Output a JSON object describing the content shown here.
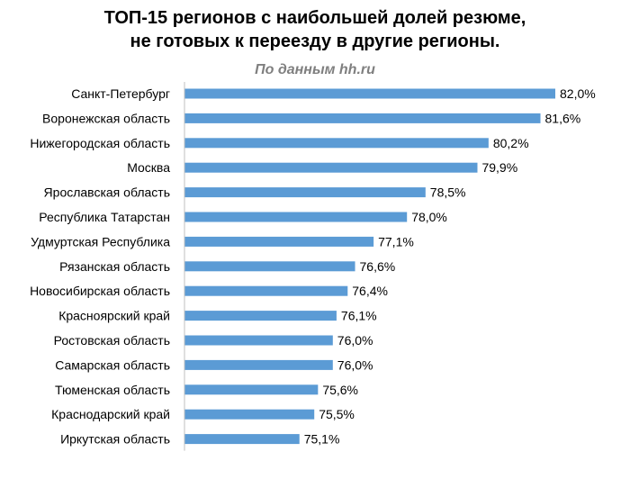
{
  "chart_data": {
    "type": "bar",
    "orientation": "horizontal",
    "title": "ТОП-15 регионов с наибольшей долей резюме, не готовых к переезду в другие регионы.",
    "title_lines": [
      "ТОП-15 регионов с наибольшей долей резюме,",
      "не готовых к переезду в другие регионы."
    ],
    "subtitle": "По данным hh.ru",
    "categories": [
      "Санкт-Петербург",
      "Воронежская область",
      "Нижегородская область",
      "Москва",
      "Ярославская область",
      "Республика Татарстан",
      "Удмуртская Республика",
      "Рязанская область",
      "Новосибирская область",
      "Красноярский край",
      "Ростовская область",
      "Самарская область",
      "Тюменская область",
      "Краснодарский край",
      "Иркутская область"
    ],
    "values": [
      82.0,
      81.6,
      80.2,
      79.9,
      78.5,
      78.0,
      77.1,
      76.6,
      76.4,
      76.1,
      76.0,
      76.0,
      75.6,
      75.5,
      75.1
    ],
    "value_labels": [
      "82,0%",
      "81,6%",
      "80,2%",
      "79,9%",
      "78,5%",
      "78,0%",
      "77,1%",
      "76,6%",
      "76,4%",
      "76,1%",
      "76,0%",
      "76,0%",
      "75,6%",
      "75,5%",
      "75,1%"
    ],
    "unit": "%",
    "xlim": [
      72,
      82
    ],
    "grid": false,
    "legend": "none",
    "bar_color": "#5b9bd5"
  }
}
